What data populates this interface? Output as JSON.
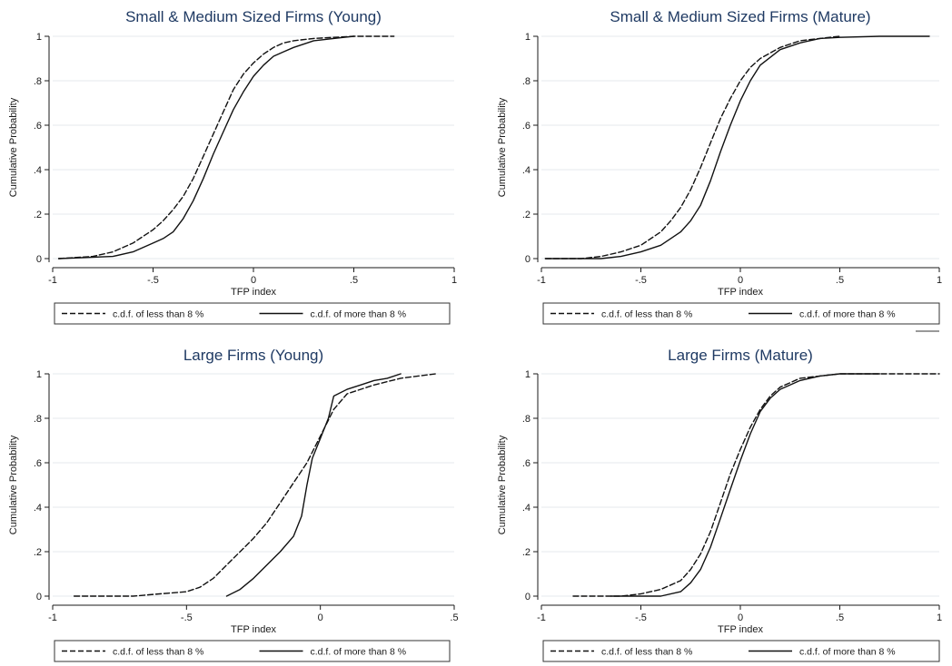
{
  "chart_data": [
    {
      "type": "line",
      "title": "Small & Medium Sized Firms (Young)",
      "xlabel": "TFP index",
      "ylabel": "Cumulative Probability",
      "xlim": [
        -1,
        1
      ],
      "ylim": [
        0,
        1
      ],
      "xticks": [
        -1,
        -0.5,
        0,
        0.5,
        1
      ],
      "xtick_labels": [
        "-1",
        "-.5",
        "0",
        ".5",
        "1"
      ],
      "yticks": [
        0,
        0.2,
        0.4,
        0.6,
        0.8,
        1
      ],
      "ytick_labels": [
        "0",
        ".2",
        ".4",
        ".6",
        ".8",
        "1"
      ],
      "grid": true,
      "legend_position": "bottom",
      "series": [
        {
          "name": "c.d.f. of  less than 8 %",
          "dash": "dashed",
          "x": [
            -0.97,
            -0.8,
            -0.7,
            -0.6,
            -0.5,
            -0.45,
            -0.4,
            -0.35,
            -0.3,
            -0.25,
            -0.2,
            -0.15,
            -0.1,
            -0.05,
            0,
            0.05,
            0.1,
            0.15,
            0.2,
            0.3,
            0.4,
            0.5,
            0.6,
            0.7
          ],
          "y": [
            0,
            0.01,
            0.03,
            0.07,
            0.13,
            0.17,
            0.22,
            0.28,
            0.36,
            0.46,
            0.56,
            0.66,
            0.76,
            0.83,
            0.88,
            0.92,
            0.95,
            0.97,
            0.98,
            0.99,
            0.995,
            1,
            1,
            1
          ]
        },
        {
          "name": "c.d.f. of  more than 8 %",
          "dash": "solid",
          "x": [
            -0.97,
            -0.7,
            -0.6,
            -0.5,
            -0.45,
            -0.4,
            -0.35,
            -0.3,
            -0.25,
            -0.2,
            -0.15,
            -0.1,
            -0.05,
            0,
            0.05,
            0.1,
            0.15,
            0.2,
            0.3,
            0.4,
            0.5
          ],
          "y": [
            0,
            0.01,
            0.03,
            0.07,
            0.09,
            0.12,
            0.18,
            0.26,
            0.36,
            0.47,
            0.57,
            0.67,
            0.75,
            0.82,
            0.87,
            0.91,
            0.93,
            0.95,
            0.98,
            0.99,
            1
          ]
        }
      ]
    },
    {
      "type": "line",
      "title": "Small & Medium Sized Firms (Mature)",
      "xlabel": "TFP index",
      "ylabel": "Cumulative Probability",
      "xlim": [
        -1,
        1
      ],
      "ylim": [
        0,
        1
      ],
      "xticks": [
        -1,
        -0.5,
        0,
        0.5,
        1
      ],
      "xtick_labels": [
        "-1",
        "-.5",
        "0",
        ".5",
        "1"
      ],
      "yticks": [
        0,
        0.2,
        0.4,
        0.6,
        0.8,
        1
      ],
      "ytick_labels": [
        "0",
        ".2",
        ".4",
        ".6",
        ".8",
        "1"
      ],
      "grid": true,
      "legend_position": "bottom",
      "series": [
        {
          "name": "c.d.f. of  less than 8 %",
          "dash": "dashed",
          "x": [
            -0.98,
            -0.8,
            -0.7,
            -0.6,
            -0.5,
            -0.4,
            -0.35,
            -0.3,
            -0.25,
            -0.2,
            -0.15,
            -0.1,
            -0.05,
            0,
            0.05,
            0.1,
            0.2,
            0.3,
            0.4,
            0.5
          ],
          "y": [
            0,
            0,
            0.01,
            0.03,
            0.06,
            0.12,
            0.17,
            0.23,
            0.31,
            0.41,
            0.52,
            0.63,
            0.72,
            0.8,
            0.86,
            0.9,
            0.95,
            0.98,
            0.99,
            1
          ]
        },
        {
          "name": "c.d.f. of  more than 8 %",
          "dash": "solid",
          "x": [
            -0.98,
            -0.7,
            -0.6,
            -0.5,
            -0.4,
            -0.3,
            -0.25,
            -0.2,
            -0.15,
            -0.1,
            -0.05,
            0,
            0.05,
            0.1,
            0.2,
            0.3,
            0.4,
            0.5,
            0.7,
            0.95
          ],
          "y": [
            0,
            0,
            0.01,
            0.03,
            0.06,
            0.12,
            0.17,
            0.24,
            0.35,
            0.48,
            0.6,
            0.71,
            0.8,
            0.87,
            0.94,
            0.97,
            0.99,
            0.995,
            1,
            1
          ]
        }
      ]
    },
    {
      "type": "line",
      "title": "Large Firms (Young)",
      "xlabel": "TFP index",
      "ylabel": "Cumulative Probability",
      "xlim": [
        -1,
        0.5
      ],
      "ylim": [
        0,
        1
      ],
      "xticks": [
        -1,
        -0.5,
        0,
        0.5
      ],
      "xtick_labels": [
        "-1",
        "-.5",
        "0",
        ".5"
      ],
      "yticks": [
        0,
        0.2,
        0.4,
        0.6,
        0.8,
        1
      ],
      "ytick_labels": [
        "0",
        ".2",
        ".4",
        ".6",
        ".8",
        "1"
      ],
      "grid": true,
      "legend_position": "bottom",
      "series": [
        {
          "name": "c.d.f. of  less than 8 %",
          "dash": "dashed",
          "x": [
            -0.92,
            -0.7,
            -0.6,
            -0.5,
            -0.45,
            -0.4,
            -0.35,
            -0.3,
            -0.25,
            -0.2,
            -0.15,
            -0.1,
            -0.05,
            0,
            0.05,
            0.1,
            0.2,
            0.3,
            0.43
          ],
          "y": [
            0,
            0,
            0.01,
            0.02,
            0.04,
            0.08,
            0.14,
            0.2,
            0.26,
            0.33,
            0.42,
            0.51,
            0.6,
            0.72,
            0.84,
            0.91,
            0.95,
            0.98,
            1
          ]
        },
        {
          "name": "c.d.f. of  more than 8 %",
          "dash": "solid",
          "x": [
            -0.35,
            -0.3,
            -0.25,
            -0.2,
            -0.15,
            -0.1,
            -0.07,
            -0.05,
            -0.03,
            0,
            0.03,
            0.05,
            0.1,
            0.15,
            0.2,
            0.25,
            0.3
          ],
          "y": [
            0,
            0.03,
            0.08,
            0.14,
            0.2,
            0.27,
            0.36,
            0.5,
            0.62,
            0.71,
            0.8,
            0.9,
            0.93,
            0.95,
            0.97,
            0.98,
            1
          ]
        }
      ]
    },
    {
      "type": "line",
      "title": "Large Firms (Mature)",
      "xlabel": "TFP index",
      "ylabel": "Cumulative Probability",
      "xlim": [
        -1,
        1
      ],
      "ylim": [
        0,
        1
      ],
      "xticks": [
        -1,
        -0.5,
        0,
        0.5,
        1
      ],
      "xtick_labels": [
        "-1",
        "-.5",
        "0",
        ".5",
        "1"
      ],
      "yticks": [
        0,
        0.2,
        0.4,
        0.6,
        0.8,
        1
      ],
      "ytick_labels": [
        "0",
        ".2",
        ".4",
        ".6",
        ".8",
        "1"
      ],
      "grid": true,
      "legend_position": "bottom",
      "series": [
        {
          "name": "c.d.f. of  less than 8 %",
          "dash": "dashed",
          "x": [
            -0.84,
            -0.6,
            -0.5,
            -0.4,
            -0.3,
            -0.25,
            -0.2,
            -0.15,
            -0.1,
            -0.05,
            0,
            0.05,
            0.1,
            0.15,
            0.2,
            0.3,
            0.4,
            0.5,
            0.7,
            1
          ],
          "y": [
            0,
            0,
            0.01,
            0.03,
            0.07,
            0.12,
            0.19,
            0.29,
            0.42,
            0.55,
            0.66,
            0.76,
            0.84,
            0.9,
            0.94,
            0.98,
            0.99,
            1,
            1,
            1
          ]
        },
        {
          "name": "c.d.f. of  more than 8 %",
          "dash": "solid",
          "x": [
            -0.65,
            -0.4,
            -0.3,
            -0.25,
            -0.2,
            -0.15,
            -0.1,
            -0.05,
            0,
            0.05,
            0.1,
            0.15,
            0.2,
            0.3,
            0.4,
            0.5,
            0.7
          ],
          "y": [
            0,
            0,
            0.02,
            0.06,
            0.12,
            0.22,
            0.35,
            0.48,
            0.61,
            0.73,
            0.83,
            0.89,
            0.93,
            0.97,
            0.99,
            1,
            1
          ]
        }
      ]
    }
  ]
}
